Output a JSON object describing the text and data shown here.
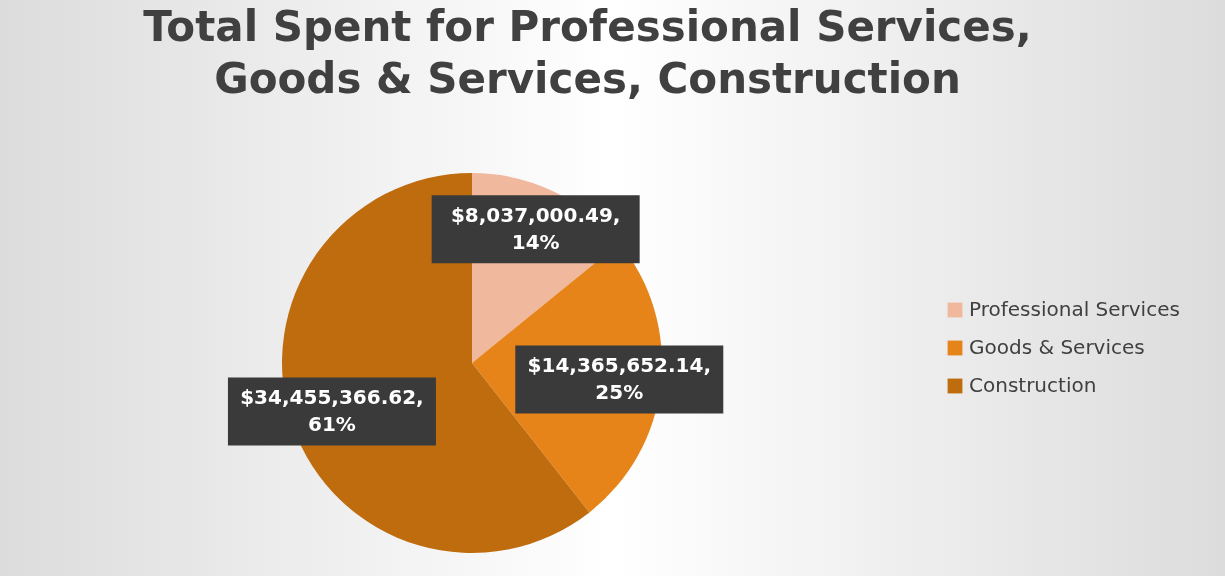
{
  "chart_data": {
    "type": "pie",
    "title": "Total Spent for Professional Services, Goods & Services, Construction",
    "categories": [
      "Professional Services",
      "Goods & Services",
      "Construction"
    ],
    "values": [
      8037000.49,
      14365652.14,
      34455366.62
    ],
    "colors": [
      "#f0b89d",
      "#e6841a",
      "#bf6c0e"
    ],
    "value_labels": [
      "$8,037,000.49, 14%",
      "$14,365,652.14, 25%",
      "$34,455,366.62, 61%"
    ],
    "legend": "right"
  }
}
